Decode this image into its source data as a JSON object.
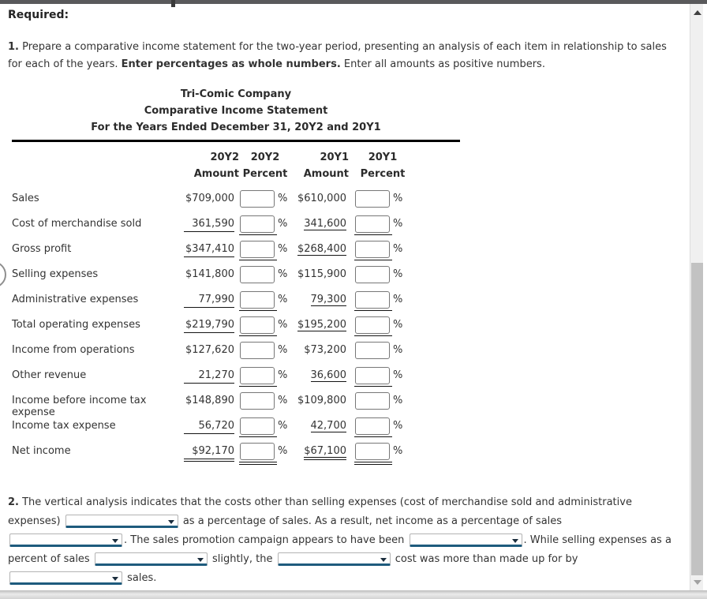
{
  "page": {
    "required_label": "Required:",
    "instruction1": {
      "number": "1.",
      "text_a": " Prepare a comparative income statement for the two-year period, presenting an analysis of each item in relationship to sales for each of the years. ",
      "bold_b": "Enter percentages as whole numbers.",
      "text_c": " Enter all amounts as positive numbers."
    }
  },
  "statement": {
    "company": "Tri-Comic Company",
    "title": "Comparative Income Statement",
    "period": "For the Years Ended December 31, 20Y2 and 20Y1",
    "columns": {
      "y2": "20Y2",
      "y1": "20Y1",
      "amount": "Amount",
      "percent": "Percent"
    },
    "percent_symbol": "%",
    "rows": [
      {
        "label": "Sales",
        "amount_20y2": "$709,000",
        "amount_20y1": "$610,000"
      },
      {
        "label": "Cost of merchandise sold",
        "amount_20y2": "361,590",
        "amount_20y1": "341,600"
      },
      {
        "label": "Gross profit",
        "amount_20y2": "$347,410",
        "amount_20y1": "$268,400"
      },
      {
        "label": "Selling expenses",
        "amount_20y2": "$141,800",
        "amount_20y1": "$115,900"
      },
      {
        "label": "Administrative expenses",
        "amount_20y2": "77,990",
        "amount_20y1": "79,300"
      },
      {
        "label": "Total operating expenses",
        "amount_20y2": "$219,790",
        "amount_20y1": "$195,200"
      },
      {
        "label": "Income from operations",
        "amount_20y2": "$127,620",
        "amount_20y1": "$73,200"
      },
      {
        "label": "Other revenue",
        "amount_20y2": "21,270",
        "amount_20y1": "36,600"
      },
      {
        "label": "Income before income tax expense",
        "amount_20y2": "$148,890",
        "amount_20y1": "$109,800"
      },
      {
        "label": "Income tax expense",
        "amount_20y2": "56,720",
        "amount_20y1": "42,700"
      },
      {
        "label": "Net income",
        "amount_20y2": "$92,170",
        "amount_20y1": "$67,100"
      }
    ]
  },
  "question2": {
    "number": "2.",
    "seg1": " The vertical analysis indicates that the costs other than selling expenses (cost of merchandise sold and administrative expenses) ",
    "seg2": " as a percentage of sales. As a result, net income as a percentage of sales ",
    "seg3": ". The sales promotion campaign appears to have been ",
    "seg4": ". While selling expenses as a percent of sales ",
    "seg5": " slightly, the ",
    "seg6": " cost was more than made up for by ",
    "seg7": " sales."
  }
}
